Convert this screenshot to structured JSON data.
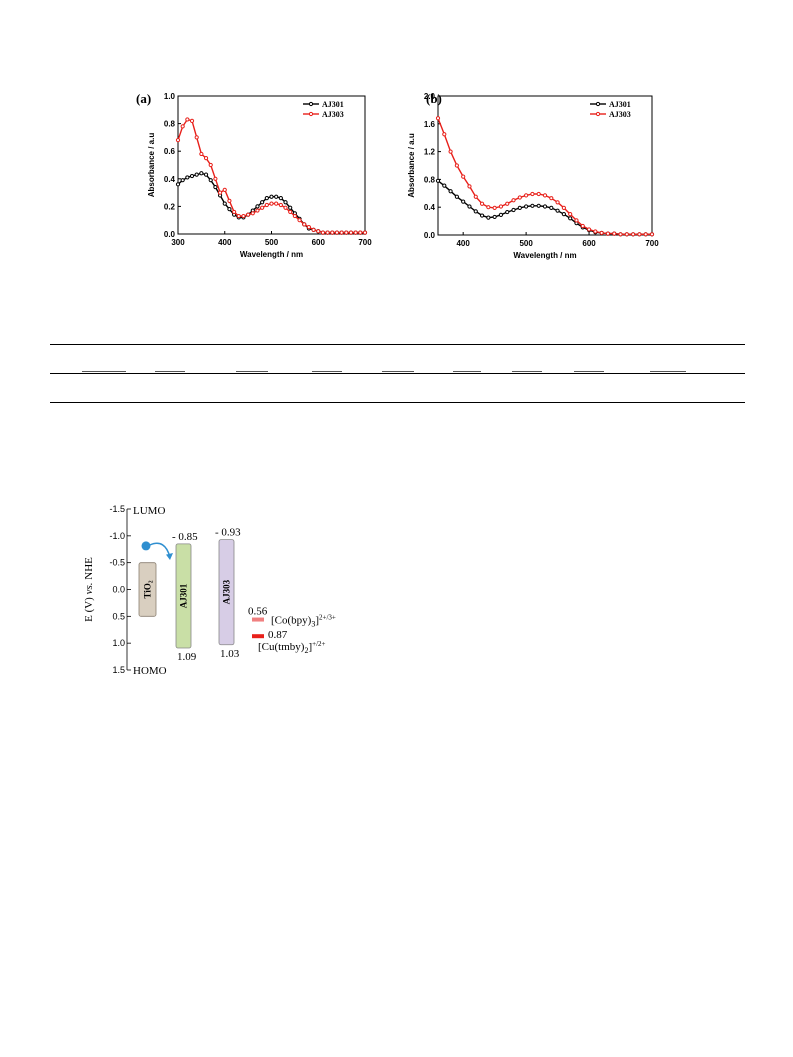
{
  "chart_data": [
    {
      "type": "line",
      "panel_label": "(a)",
      "xlabel": "Wavelength / nm",
      "ylabel": "Absorbance / a.u",
      "xlim": [
        300,
        700
      ],
      "ylim": [
        0.0,
        1.0
      ],
      "xticks": [
        300,
        400,
        500,
        600,
        700
      ],
      "yticks": [
        0.0,
        0.2,
        0.4,
        0.6,
        0.8,
        1.0
      ],
      "ytick_labels": [
        "0.0",
        "0.2",
        "0.4",
        "0.6",
        "0.8",
        "1.0"
      ],
      "legend_position": "top-right",
      "series": [
        {
          "name": "AJ301",
          "color": "#000000",
          "x": [
            300,
            310,
            320,
            330,
            340,
            350,
            360,
            370,
            380,
            390,
            400,
            410,
            420,
            430,
            440,
            450,
            460,
            470,
            480,
            490,
            500,
            510,
            520,
            530,
            540,
            550,
            560,
            570,
            580,
            590,
            600,
            610,
            620,
            630,
            640,
            650,
            660,
            670,
            680,
            690,
            700
          ],
          "y": [
            0.36,
            0.39,
            0.41,
            0.42,
            0.43,
            0.44,
            0.43,
            0.39,
            0.34,
            0.28,
            0.22,
            0.18,
            0.14,
            0.12,
            0.12,
            0.14,
            0.17,
            0.2,
            0.23,
            0.26,
            0.27,
            0.27,
            0.26,
            0.23,
            0.19,
            0.15,
            0.11,
            0.07,
            0.04,
            0.03,
            0.02,
            0.01,
            0.01,
            0.01,
            0.01,
            0.01,
            0.01,
            0.01,
            0.01,
            0.01,
            0.01
          ]
        },
        {
          "name": "AJ303",
          "color": "#e8201a",
          "x": [
            300,
            310,
            320,
            330,
            340,
            350,
            360,
            370,
            380,
            390,
            400,
            410,
            420,
            430,
            440,
            450,
            460,
            470,
            480,
            490,
            500,
            510,
            520,
            530,
            540,
            550,
            560,
            570,
            580,
            590,
            600,
            610,
            620,
            630,
            640,
            650,
            660,
            670,
            680,
            690,
            700
          ],
          "y": [
            0.68,
            0.78,
            0.83,
            0.82,
            0.7,
            0.58,
            0.55,
            0.5,
            0.4,
            0.3,
            0.32,
            0.24,
            0.16,
            0.13,
            0.13,
            0.14,
            0.15,
            0.17,
            0.19,
            0.21,
            0.22,
            0.22,
            0.21,
            0.19,
            0.16,
            0.13,
            0.1,
            0.07,
            0.05,
            0.03,
            0.02,
            0.01,
            0.01,
            0.01,
            0.01,
            0.01,
            0.01,
            0.01,
            0.01,
            0.01,
            0.01
          ]
        }
      ]
    },
    {
      "type": "line",
      "panel_label": "(b)",
      "xlabel": "Wavelength / nm",
      "ylabel": "Absorbance / a.u",
      "xlim": [
        360,
        700
      ],
      "ylim": [
        0.0,
        2.0
      ],
      "xticks": [
        400,
        500,
        600,
        700
      ],
      "yticks": [
        0.0,
        0.4,
        0.8,
        1.2,
        1.6,
        2.0
      ],
      "ytick_labels": [
        "0.0",
        "0.4",
        "0.8",
        "1.2",
        "1.6",
        "2.0"
      ],
      "legend_position": "top-right",
      "series": [
        {
          "name": "AJ301",
          "color": "#000000",
          "x": [
            360,
            370,
            380,
            390,
            400,
            410,
            420,
            430,
            440,
            450,
            460,
            470,
            480,
            490,
            500,
            510,
            520,
            530,
            540,
            550,
            560,
            570,
            580,
            590,
            600,
            610,
            620,
            630,
            640,
            650,
            660,
            670,
            680,
            690,
            700
          ],
          "y": [
            0.78,
            0.71,
            0.63,
            0.55,
            0.48,
            0.41,
            0.34,
            0.28,
            0.25,
            0.26,
            0.29,
            0.33,
            0.36,
            0.39,
            0.41,
            0.42,
            0.42,
            0.41,
            0.39,
            0.35,
            0.3,
            0.24,
            0.17,
            0.11,
            0.07,
            0.04,
            0.03,
            0.02,
            0.02,
            0.01,
            0.01,
            0.01,
            0.01,
            0.01,
            0.01
          ]
        },
        {
          "name": "AJ303",
          "color": "#e8201a",
          "x": [
            360,
            370,
            380,
            390,
            400,
            410,
            420,
            430,
            440,
            450,
            460,
            470,
            480,
            490,
            500,
            510,
            520,
            530,
            540,
            550,
            560,
            570,
            580,
            590,
            600,
            610,
            620,
            630,
            640,
            650,
            660,
            670,
            680,
            690,
            700
          ],
          "y": [
            1.68,
            1.45,
            1.2,
            1.0,
            0.84,
            0.7,
            0.55,
            0.45,
            0.4,
            0.39,
            0.41,
            0.45,
            0.5,
            0.54,
            0.57,
            0.59,
            0.59,
            0.57,
            0.53,
            0.47,
            0.39,
            0.3,
            0.21,
            0.13,
            0.08,
            0.05,
            0.03,
            0.02,
            0.02,
            0.01,
            0.01,
            0.01,
            0.01,
            0.01,
            0.01
          ]
        }
      ]
    },
    {
      "type": "bar",
      "ylabel_prefix": "E (V) ",
      "ylabel_italic": "vs.",
      "ylabel_suffix": " NHE",
      "ylim": [
        -1.5,
        1.5
      ],
      "yticks": [
        -1.5,
        -1.0,
        -0.5,
        0.0,
        0.5,
        1.0,
        1.5
      ],
      "ytick_labels": [
        "-1.5",
        "-1.0",
        "-0.5",
        "0.0",
        "0.5",
        "1.0",
        "1.5"
      ],
      "top_label": "LUMO",
      "bottom_label": "HOMO",
      "tio2": {
        "label": "TiO₂",
        "top": -0.5,
        "bottom": 0.5,
        "color": "#d9cfc0"
      },
      "dyes": [
        {
          "name": "AJ301",
          "lumo": -0.85,
          "homo": 1.09,
          "lumo_label": "- 0.85",
          "homo_label": "1.09",
          "color": "#c9dfa6"
        },
        {
          "name": "AJ303",
          "lumo": -0.93,
          "homo": 1.03,
          "lumo_label": "- 0.93",
          "homo_label": "1.03",
          "color": "#d7cde6"
        }
      ],
      "redox": [
        {
          "value": 0.56,
          "value_label": "0.56",
          "name_main": "[Co(bpy)",
          "name_sub": "3",
          "name_sup": "2+/3+",
          "color": "#f08080"
        },
        {
          "value": 0.87,
          "value_label": "0.87",
          "name_main": "[Cu(tmby)",
          "name_sub": "2",
          "name_sup": "+/2+",
          "color": "#e8201a"
        }
      ],
      "electron_color": "#2f8fd0"
    }
  ]
}
